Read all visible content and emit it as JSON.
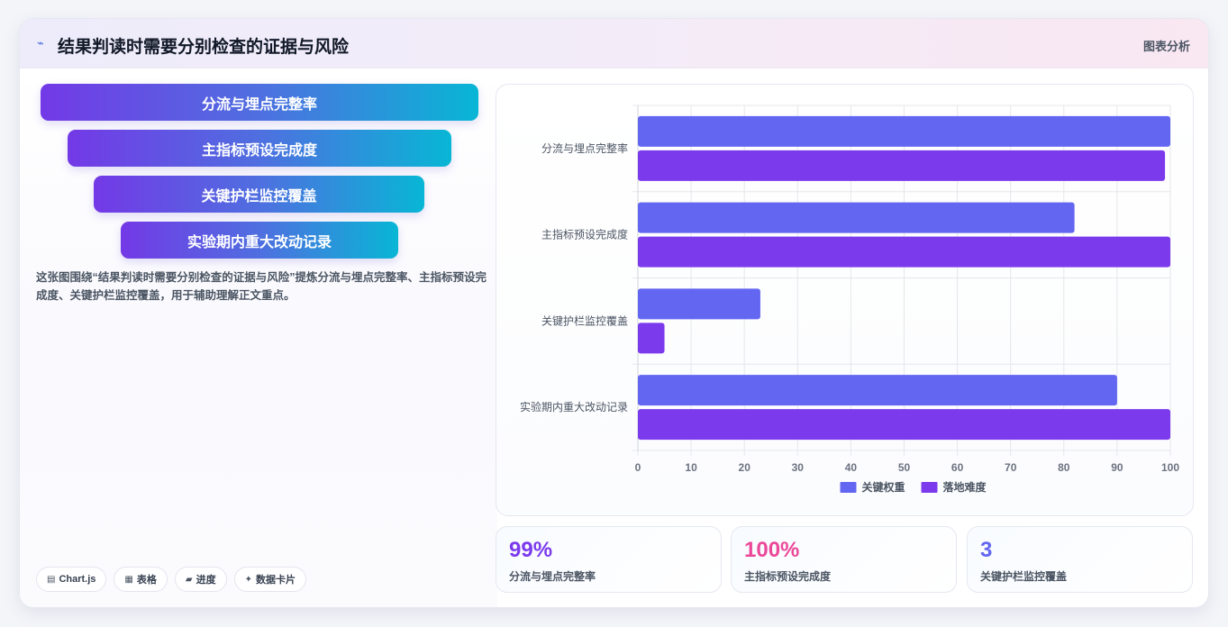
{
  "header": {
    "title": "结果判读时需要分别检查的证据与风险",
    "right_label": "图表分析",
    "icon": "trend-icon"
  },
  "funnel": {
    "items": [
      {
        "label": "分流与埋点完整率"
      },
      {
        "label": "主指标预设完成度"
      },
      {
        "label": "关键护栏监控覆盖"
      },
      {
        "label": "实验期内重大改动记录"
      }
    ]
  },
  "description": "这张图围绕“结果判读时需要分别检查的证据与风险”提炼分流与埋点完整率、主指标预设完成度、关键护栏监控覆盖，用于辅助理解正文重点。",
  "tags": [
    {
      "icon": "chart-icon",
      "label": "Chart.js"
    },
    {
      "icon": "table-icon",
      "label": "表格"
    },
    {
      "icon": "folder-icon",
      "label": "进度"
    },
    {
      "icon": "sparkle-icon",
      "label": "数据卡片"
    }
  ],
  "chart_data": {
    "type": "bar",
    "orientation": "horizontal",
    "categories": [
      "分流与埋点完整率",
      "主指标预设完成度",
      "关键护栏监控覆盖",
      "实验期内重大改动记录"
    ],
    "series": [
      {
        "name": "关键权重",
        "color": "#6366f1",
        "values": [
          100,
          82,
          23,
          90
        ]
      },
      {
        "name": "落地难度",
        "color": "#7c3aed",
        "values": [
          99,
          100,
          5,
          100
        ]
      }
    ],
    "xlim": [
      0,
      100
    ],
    "ticks": [
      "0",
      "10",
      "20",
      "30",
      "40",
      "50",
      "60",
      "70",
      "80",
      "90",
      "100"
    ],
    "grid": true,
    "legend": "bottom"
  },
  "stats": [
    {
      "value": "99%",
      "label": "分流与埋点完整率",
      "color": "#7c3aed"
    },
    {
      "value": "100%",
      "label": "主指标预设完成度",
      "color": "#ec4899"
    },
    {
      "value": "3",
      "label": "关键护栏监控覆盖",
      "color": "#6366f1"
    }
  ]
}
